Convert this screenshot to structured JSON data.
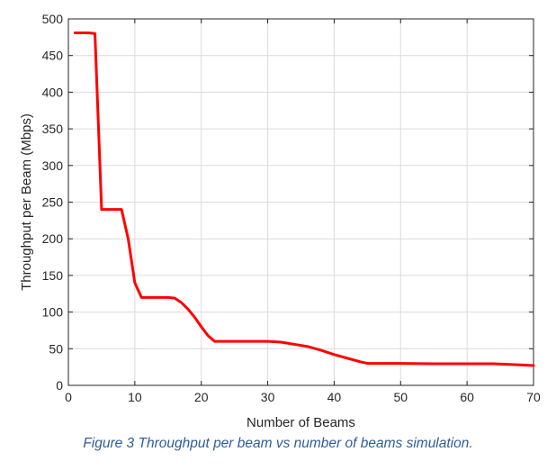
{
  "chart_data": {
    "type": "line",
    "title": "",
    "xlabel": "Number of Beams",
    "ylabel": "Throughput per Beam (Mbps)",
    "xlim": [
      0,
      70
    ],
    "ylim": [
      0,
      500
    ],
    "xticks": [
      0,
      10,
      20,
      30,
      40,
      50,
      60,
      70
    ],
    "yticks": [
      0,
      50,
      100,
      150,
      200,
      250,
      300,
      350,
      400,
      450,
      500
    ],
    "grid": true,
    "series": [
      {
        "color": "#ff0000",
        "x": [
          1,
          2,
          3,
          4,
          5,
          6,
          7,
          8,
          9,
          10,
          11,
          12,
          13,
          14,
          15,
          16,
          17,
          18,
          19,
          20,
          21,
          22,
          23,
          24,
          25,
          26,
          27,
          28,
          29,
          30,
          32,
          34,
          36,
          38,
          40,
          42,
          44,
          45,
          50,
          55,
          60,
          64,
          68,
          70
        ],
        "y": [
          481,
          481,
          481,
          480,
          240,
          240,
          240,
          240,
          200,
          140,
          120,
          120,
          120,
          120,
          120,
          119,
          113,
          104,
          93,
          80,
          68,
          60,
          60,
          60,
          60,
          60,
          60,
          60,
          60,
          60,
          59,
          56,
          53,
          48,
          42,
          37,
          32,
          30,
          30,
          29.5,
          29.5,
          29.5,
          28,
          27
        ]
      }
    ]
  },
  "caption": "Figure 3 Throughput per beam vs number of beams simulation."
}
